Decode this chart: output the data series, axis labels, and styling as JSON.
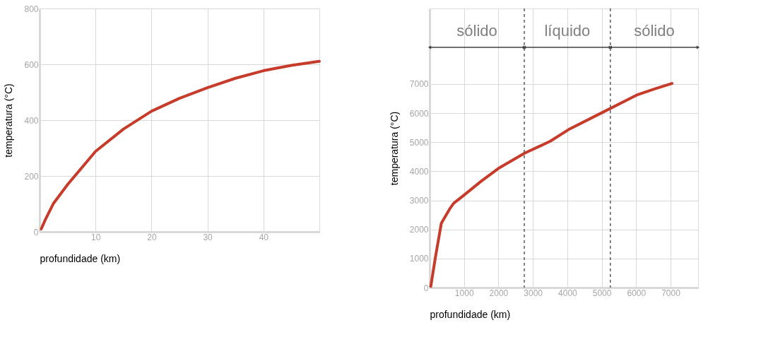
{
  "chart_data": [
    {
      "type": "line",
      "xlabel": "profundidade (km)",
      "ylabel": "temperatura (°C)",
      "series": [
        {
          "color": "#c63b2a",
          "x": [
            0.3,
            1,
            2.5,
            5,
            10,
            15,
            20,
            25,
            30,
            35,
            40,
            45,
            50
          ],
          "values": [
            10,
            42,
            102,
            169,
            288,
            368,
            432,
            478,
            516,
            550,
            577,
            596,
            611
          ]
        }
      ],
      "xlim": [
        0,
        50
      ],
      "xticks": [
        10,
        20,
        30,
        40
      ],
      "ylim": [
        0,
        800
      ],
      "yticks": [
        0,
        200,
        400,
        600,
        800
      ],
      "grid": true,
      "marker": "none",
      "line_style": "solid"
    },
    {
      "type": "line",
      "xlabel": "profundidade (km)",
      "ylabel": "temperatura (°C)",
      "series": [
        {
          "color": "#c63b2a",
          "x": [
            34,
            170,
            340,
            580,
            700,
            1000,
            1500,
            2000,
            2770,
            3500,
            4030,
            5030,
            6050,
            6550,
            7040
          ],
          "values": [
            40,
            1050,
            2210,
            2700,
            2900,
            3180,
            3660,
            4100,
            4630,
            5030,
            5430,
            6030,
            6640,
            6840,
            7020
          ]
        }
      ],
      "xlim": [
        0,
        7800
      ],
      "xticks": [
        1000,
        2000,
        3000,
        4000,
        5000,
        6000,
        7000
      ],
      "ylim": [
        0,
        9600
      ],
      "yticks": [
        0,
        1000,
        2000,
        3000,
        4000,
        5000,
        6000,
        7000
      ],
      "grid": true,
      "marker": "none",
      "line_style": "solid",
      "ref_lines": [
        {
          "axis": "x",
          "value": 2750,
          "color": "#595959",
          "line_style": "dashed"
        },
        {
          "axis": "x",
          "value": 5250,
          "color": "#595959",
          "line_style": "dashed"
        }
      ],
      "annotations": [
        "sólido",
        "líquido",
        "sólido"
      ]
    }
  ]
}
